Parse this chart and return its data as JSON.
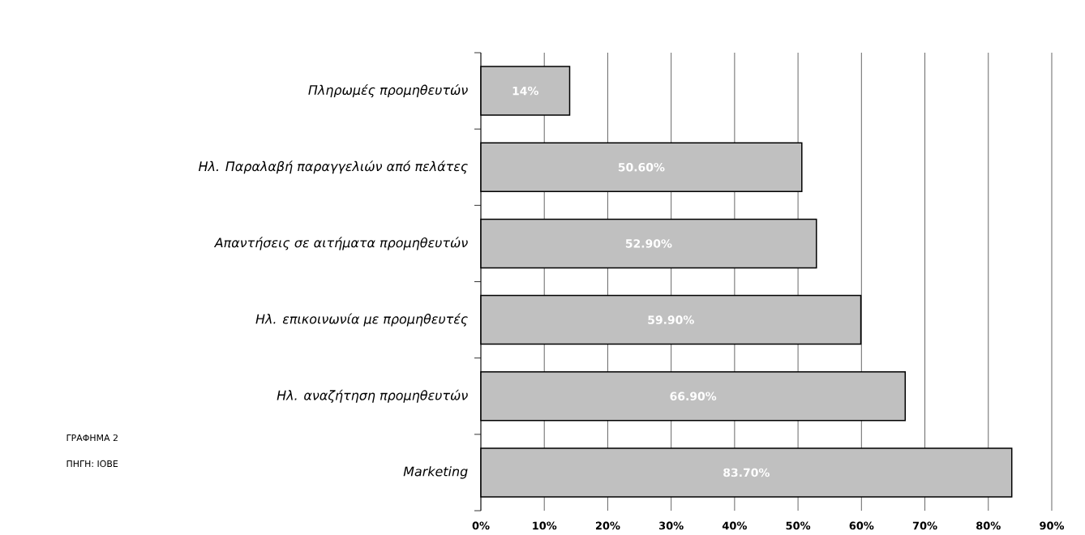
{
  "chart_data": {
    "type": "bar",
    "orientation": "horizontal",
    "categories": [
      "Πληρωμές προμηθευτών",
      "Ηλ. Παραλαβή παραγγελιών από πελάτες",
      "Απαντήσεις σε αιτήματα προμηθευτών",
      "Ηλ. επικοινωνία με προμηθευτές",
      "Ηλ. αναζήτηση προμηθευτών",
      "Marketing"
    ],
    "values": [
      14,
      50.6,
      52.9,
      59.9,
      66.9,
      83.7
    ],
    "value_labels": [
      "14%",
      "50.60%",
      "52.90%",
      "59.90%",
      "66.90%",
      "83.70%"
    ],
    "color": "#c0c0c0",
    "xlim": [
      0,
      90
    ],
    "xticks": [
      {
        "value": 0,
        "label": "0%"
      },
      {
        "value": 10,
        "label": "10%"
      },
      {
        "value": 20,
        "label": "20%"
      },
      {
        "value": 30,
        "label": "30%"
      },
      {
        "value": 40,
        "label": "40%"
      },
      {
        "value": 50,
        "label": "50%"
      },
      {
        "value": 60,
        "label": "60%"
      },
      {
        "value": 70,
        "label": "70%"
      },
      {
        "value": 80,
        "label": "80%"
      },
      {
        "value": 90,
        "label": "90%"
      }
    ],
    "grid": "x",
    "annotations": [
      "ΓΡΑΦΗΜΑ 2",
      "ΠΗΓΗ: ΙΟΒΕ"
    ]
  }
}
